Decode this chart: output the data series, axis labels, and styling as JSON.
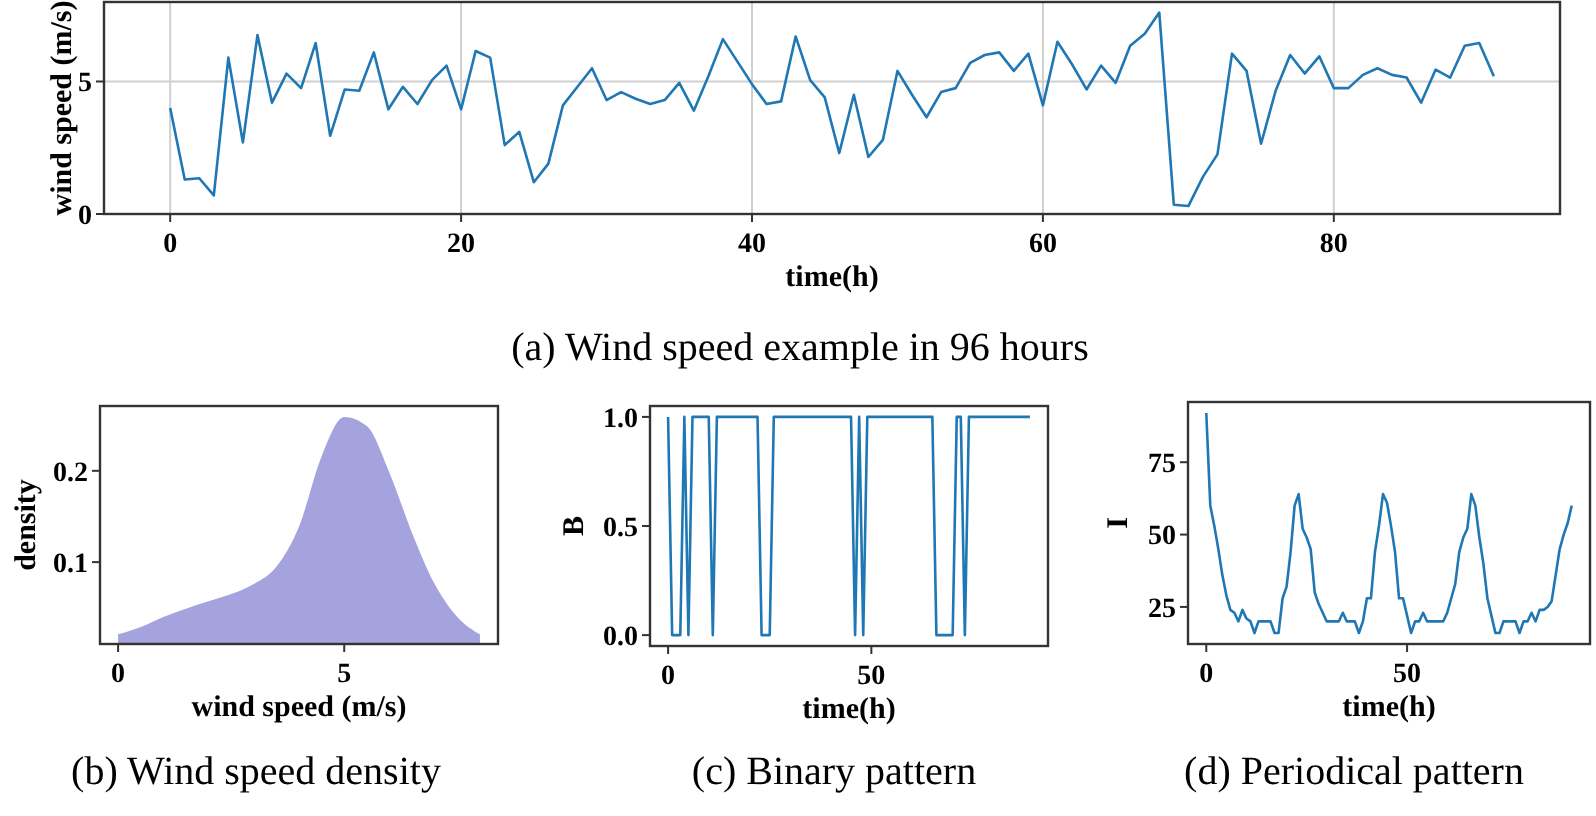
{
  "chart_data": [
    {
      "type": "line",
      "title": "(a) Wind speed example in 96 hours",
      "xlabel": "time(h)",
      "ylabel": "wind speed (m/s)",
      "xlim": [
        -4.55,
        95.55
      ],
      "ylim": [
        0,
        8
      ],
      "xticks": [
        0,
        20,
        40,
        60,
        80
      ],
      "yticks": [
        0,
        5
      ],
      "grid": true,
      "series": [
        {
          "color": "#1f77b4",
          "x": [
            0,
            1,
            2,
            3,
            4,
            5,
            6,
            7,
            8,
            9,
            10,
            11,
            12,
            13,
            14,
            15,
            16,
            17,
            18,
            19,
            20,
            21,
            22,
            23,
            24,
            25,
            26,
            27,
            28,
            29,
            30,
            31,
            32,
            33,
            34,
            35,
            36,
            37,
            38,
            39,
            40,
            41,
            42,
            43,
            44,
            45,
            46,
            47,
            48,
            49,
            50,
            51,
            52,
            53,
            54,
            55,
            56,
            57,
            58,
            59,
            60,
            61,
            62,
            63,
            64,
            65,
            66,
            67,
            68,
            69,
            70,
            71,
            72,
            73,
            74,
            75,
            76,
            77,
            78,
            79,
            80,
            81,
            82,
            83,
            84,
            85,
            86,
            87,
            88,
            89,
            90,
            91
          ],
          "values": [
            4.0,
            1.3,
            1.35,
            0.7,
            5.9,
            2.7,
            6.75,
            4.2,
            5.3,
            4.75,
            6.45,
            2.95,
            4.7,
            4.65,
            6.1,
            3.95,
            4.8,
            4.15,
            5.05,
            5.6,
            3.95,
            6.15,
            5.9,
            2.6,
            3.1,
            1.2,
            1.9,
            4.1,
            4.8,
            5.5,
            4.3,
            4.6,
            4.35,
            4.15,
            4.3,
            4.95,
            3.9,
            5.2,
            6.6,
            5.75,
            4.9,
            4.15,
            4.25,
            6.7,
            5.05,
            4.4,
            2.3,
            4.5,
            2.15,
            2.8,
            5.4,
            4.5,
            3.65,
            4.6,
            4.75,
            5.7,
            6.0,
            6.1,
            5.4,
            6.05,
            4.1,
            6.5,
            5.65,
            4.7,
            5.6,
            4.95,
            6.35,
            6.8,
            7.6,
            0.35,
            0.3,
            1.4,
            2.25,
            6.05,
            5.4,
            2.65,
            4.65,
            6.0,
            5.3,
            5.95,
            4.75,
            4.75,
            5.25,
            5.5,
            5.25,
            5.15,
            4.2,
            5.45,
            5.15,
            6.35,
            6.45,
            5.2
          ]
        }
      ]
    },
    {
      "type": "area",
      "title": "(b) Wind speed density",
      "xlabel": "wind speed (m/s)",
      "ylabel": "density",
      "xlim": [
        -0.4,
        8.4
      ],
      "ylim": [
        0.0103,
        0.271
      ],
      "xticks": [
        0,
        5
      ],
      "yticks": [
        0.1,
        0.2
      ],
      "series": [
        {
          "color": "#a5a3dd",
          "x": [
            0,
            0.5,
            1,
            1.5,
            2,
            2.5,
            3,
            3.5,
            4,
            4.5,
            5,
            5.5,
            6,
            6.5,
            7,
            7.5,
            8
          ],
          "values": [
            0.021,
            0.029,
            0.04,
            0.049,
            0.057,
            0.065,
            0.076,
            0.095,
            0.139,
            0.216,
            0.259,
            0.249,
            0.198,
            0.132,
            0.076,
            0.04,
            0.021
          ]
        }
      ]
    },
    {
      "type": "line",
      "title": "(c) Binary pattern",
      "xlabel": "time(h)",
      "ylabel": "B",
      "xlim": [
        -4.45,
        93.45
      ],
      "ylim": [
        -0.05,
        1.05
      ],
      "xticks": [
        0,
        50
      ],
      "yticks": [
        {
          "value": 0,
          "label": "0.0"
        },
        0.5,
        {
          "value": 1,
          "label": "1.0"
        }
      ],
      "series": [
        {
          "color": "#1f77b4",
          "x": [
            0,
            1,
            2,
            3,
            4,
            5,
            6,
            7,
            8,
            9,
            10,
            11,
            12,
            13,
            14,
            15,
            16,
            17,
            18,
            19,
            20,
            21,
            22,
            23,
            24,
            25,
            26,
            27,
            28,
            29,
            30,
            31,
            32,
            33,
            34,
            35,
            36,
            37,
            38,
            39,
            40,
            41,
            42,
            43,
            44,
            45,
            46,
            47,
            48,
            49,
            50,
            51,
            52,
            53,
            54,
            55,
            56,
            57,
            58,
            59,
            60,
            61,
            62,
            63,
            64,
            65,
            66,
            67,
            68,
            69,
            70,
            71,
            72,
            73,
            74,
            75,
            76,
            77,
            78,
            79,
            80,
            81,
            82,
            83,
            84,
            85,
            86,
            87,
            88,
            89
          ],
          "values": [
            1,
            0,
            0,
            0,
            1,
            0,
            1,
            1,
            1,
            1,
            1,
            0,
            1,
            1,
            1,
            1,
            1,
            1,
            1,
            1,
            1,
            1,
            1,
            0,
            0,
            0,
            1,
            1,
            1,
            1,
            1,
            1,
            1,
            1,
            1,
            1,
            1,
            1,
            1,
            1,
            1,
            1,
            1,
            1,
            1,
            1,
            0,
            1,
            0,
            1,
            1,
            1,
            1,
            1,
            1,
            1,
            1,
            1,
            1,
            1,
            1,
            1,
            1,
            1,
            1,
            1,
            0,
            0,
            0,
            0,
            0,
            1,
            1,
            0,
            1,
            1,
            1,
            1,
            1,
            1,
            1,
            1,
            1,
            1,
            1,
            1,
            1,
            1,
            1,
            1
          ]
        }
      ]
    },
    {
      "type": "line",
      "title": "(d) Periodical pattern",
      "xlabel": "time(h)",
      "ylabel": "I",
      "xlim": [
        -4.55,
        95.55
      ],
      "ylim": [
        12.2,
        95.8
      ],
      "xticks": [
        0,
        50
      ],
      "yticks": [
        25,
        50,
        75
      ],
      "series": [
        {
          "color": "#1f77b4",
          "x": [
            0,
            1,
            2,
            3,
            4,
            5,
            6,
            7,
            8,
            9,
            10,
            11,
            12,
            13,
            14,
            15,
            16,
            17,
            18,
            19,
            20,
            21,
            22,
            23,
            24,
            25,
            26,
            27,
            28,
            29,
            30,
            31,
            32,
            33,
            34,
            35,
            36,
            37,
            38,
            39,
            40,
            41,
            42,
            43,
            44,
            45,
            46,
            47,
            48,
            49,
            50,
            51,
            52,
            53,
            54,
            55,
            56,
            57,
            58,
            59,
            60,
            61,
            62,
            63,
            64,
            65,
            66,
            67,
            68,
            69,
            70,
            71,
            72,
            73,
            74,
            75,
            76,
            77,
            78,
            79,
            80,
            81,
            82,
            83,
            84,
            85,
            86,
            87,
            88,
            89,
            90,
            91
          ],
          "values": [
            92,
            60,
            53,
            45,
            36,
            29,
            24,
            23,
            20,
            24,
            21,
            20,
            16,
            20,
            20,
            20,
            20,
            16,
            16,
            28,
            32,
            44,
            60,
            64,
            52,
            49,
            45,
            30,
            26,
            23,
            20,
            20,
            20,
            20,
            23,
            20,
            20,
            20,
            16,
            20,
            28,
            28,
            44,
            53,
            64,
            61,
            53,
            44,
            28,
            28,
            22,
            16,
            20,
            20,
            23,
            20,
            20,
            20,
            20,
            20,
            23,
            28,
            33,
            44,
            49,
            52,
            64,
            60,
            49,
            40,
            28,
            22,
            16,
            16,
            20,
            20,
            20,
            20,
            16,
            20,
            20,
            23,
            20,
            24,
            24,
            25,
            27,
            36,
            45,
            50,
            54,
            60
          ]
        }
      ]
    }
  ]
}
